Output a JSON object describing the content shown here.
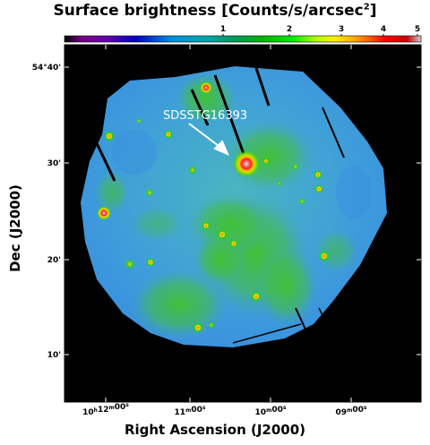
{
  "figure": {
    "title_main": "Surface brightness [Counts/s/arcsec",
    "title_exp": "2",
    "title_close": "]",
    "xlabel": "Right Ascension (J2000)",
    "ylabel": "Dec (J2000)",
    "annotation": "SDSSTG16393"
  },
  "colorbar": {
    "ticks": [
      "1",
      "2",
      "3",
      "4",
      "5"
    ],
    "colormap": "nipy_spectral"
  },
  "axes": {
    "dec_ticks": [
      "54°40'",
      "30'",
      "20'",
      "10'"
    ],
    "ra_ticks": [
      {
        "h": "10",
        "hu": "h",
        "m": "12",
        "mu": "m",
        "s": "00",
        "su": "s"
      },
      {
        "h": "",
        "hu": "",
        "m": "11",
        "mu": "m",
        "s": "00",
        "su": "s"
      },
      {
        "h": "",
        "hu": "",
        "m": "10",
        "mu": "m",
        "s": "00",
        "su": "s"
      },
      {
        "h": "",
        "hu": "",
        "m": "09",
        "mu": "m",
        "s": "00",
        "su": "s"
      }
    ]
  },
  "colors": {
    "background": "#000000",
    "diffuse_blue": "#3f9de0",
    "diffuse_green": "#3fc22f",
    "arrow": "#ffffff"
  }
}
